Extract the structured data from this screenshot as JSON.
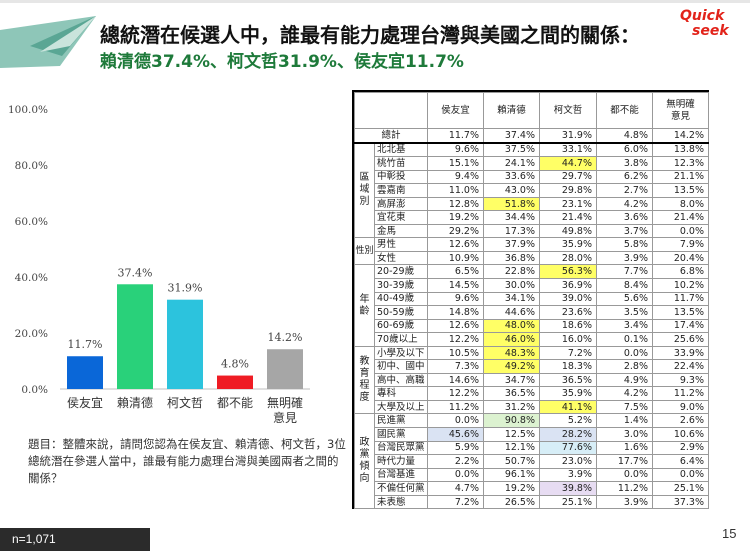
{
  "header": {
    "title": "總統潛在候選人中，誰最有能力處理台灣與美國之間的關係：",
    "subtitle": "賴清德37.4%、柯文哲31.9%、侯友宜11.7%",
    "logo_text_1": "Quick",
    "logo_text_2": "seek"
  },
  "chart_data": {
    "type": "bar",
    "categories": [
      "侯友宜",
      "賴清德",
      "柯文哲",
      "都不能",
      "無明確\n意見"
    ],
    "values": [
      11.7,
      37.4,
      31.9,
      4.8,
      14.2
    ],
    "value_labels": [
      "11.7%",
      "37.4%",
      "31.9%",
      "4.8%",
      "14.2%"
    ],
    "colors": [
      "#0a67d8",
      "#29d17a",
      "#2cc3dd",
      "#ef1c24",
      "#a6a6a6"
    ],
    "ylim": [
      0,
      100
    ],
    "yticks": [
      0,
      20,
      40,
      60,
      80,
      100
    ],
    "ytick_labels": [
      "0.0%",
      "20.0%",
      "40.0%",
      "60.0%",
      "80.0%",
      "100.0%"
    ],
    "grid": false
  },
  "note": "題目：整體來說，請問您認為在侯友宜、賴清德、柯文哲，3位總統潛在參選人當中，誰最有能力處理台灣與美國兩者之間的關係？",
  "sample": "n=1,071",
  "page_number": "15",
  "table": {
    "columns": [
      "侯友宜",
      "賴清德",
      "柯文哲",
      "都不能",
      "無明確\n意見"
    ],
    "total": {
      "label": "總計",
      "values": [
        "11.7%",
        "37.4%",
        "31.9%",
        "4.8%",
        "14.2%"
      ]
    },
    "groups": [
      {
        "label": "區域別",
        "rows": [
          {
            "label": "北北基",
            "values": [
              "9.6%",
              "37.5%",
              "33.1%",
              "6.0%",
              "13.8%"
            ]
          },
          {
            "label": "桃竹苗",
            "values": [
              "15.1%",
              "24.1%",
              "44.7%",
              "3.8%",
              "12.3%"
            ]
          },
          {
            "label": "中彰投",
            "values": [
              "9.4%",
              "33.6%",
              "29.7%",
              "6.2%",
              "21.1%"
            ]
          },
          {
            "label": "雲嘉南",
            "values": [
              "11.0%",
              "43.0%",
              "29.8%",
              "2.7%",
              "13.5%"
            ]
          },
          {
            "label": "高屏澎",
            "values": [
              "12.8%",
              "51.8%",
              "23.1%",
              "4.2%",
              "8.0%"
            ]
          },
          {
            "label": "宜花東",
            "values": [
              "19.2%",
              "34.4%",
              "21.4%",
              "3.6%",
              "21.4%"
            ]
          },
          {
            "label": "金馬",
            "values": [
              "29.2%",
              "17.3%",
              "49.8%",
              "3.7%",
              "0.0%"
            ]
          }
        ]
      },
      {
        "label": "性別",
        "rows": [
          {
            "label": "男性",
            "values": [
              "12.6%",
              "37.9%",
              "35.9%",
              "5.8%",
              "7.9%"
            ]
          },
          {
            "label": "女性",
            "values": [
              "10.9%",
              "36.8%",
              "28.0%",
              "3.9%",
              "20.4%"
            ]
          }
        ]
      },
      {
        "label": "年齡",
        "rows": [
          {
            "label": "20-29歲",
            "values": [
              "6.5%",
              "22.8%",
              "56.3%",
              "7.7%",
              "6.8%"
            ]
          },
          {
            "label": "30-39歲",
            "values": [
              "14.5%",
              "30.0%",
              "36.9%",
              "8.4%",
              "10.2%"
            ]
          },
          {
            "label": "40-49歲",
            "values": [
              "9.6%",
              "34.1%",
              "39.0%",
              "5.6%",
              "11.7%"
            ]
          },
          {
            "label": "50-59歲",
            "values": [
              "14.8%",
              "44.6%",
              "23.6%",
              "3.5%",
              "13.5%"
            ]
          },
          {
            "label": "60-69歲",
            "values": [
              "12.6%",
              "48.0%",
              "18.6%",
              "3.4%",
              "17.4%"
            ]
          },
          {
            "label": "70歲以上",
            "values": [
              "12.2%",
              "46.0%",
              "16.0%",
              "0.1%",
              "25.6%"
            ]
          }
        ]
      },
      {
        "label": "教育程度",
        "rows": [
          {
            "label": "小學及以下",
            "values": [
              "10.5%",
              "48.3%",
              "7.2%",
              "0.0%",
              "33.9%"
            ]
          },
          {
            "label": "初中、國中",
            "values": [
              "7.3%",
              "49.2%",
              "18.3%",
              "2.8%",
              "22.4%"
            ]
          },
          {
            "label": "高中、高職",
            "values": [
              "14.6%",
              "34.7%",
              "36.5%",
              "4.9%",
              "9.3%"
            ]
          },
          {
            "label": "專科",
            "values": [
              "12.2%",
              "36.5%",
              "35.9%",
              "4.2%",
              "11.2%"
            ]
          },
          {
            "label": "大學及以上",
            "values": [
              "11.2%",
              "31.2%",
              "41.1%",
              "7.5%",
              "9.0%"
            ]
          }
        ]
      },
      {
        "label": "政黨傾向",
        "rows": [
          {
            "label": "民進黨",
            "values": [
              "0.0%",
              "90.8%",
              "5.2%",
              "1.4%",
              "2.6%"
            ]
          },
          {
            "label": "國民黨",
            "values": [
              "45.6%",
              "12.5%",
              "28.2%",
              "3.0%",
              "10.6%"
            ]
          },
          {
            "label": "台灣民眾黨",
            "values": [
              "5.9%",
              "12.1%",
              "77.6%",
              "1.6%",
              "2.9%"
            ]
          },
          {
            "label": "時代力量",
            "values": [
              "2.2%",
              "50.7%",
              "23.0%",
              "17.7%",
              "6.4%"
            ]
          },
          {
            "label": "台灣基進",
            "values": [
              "0.0%",
              "96.1%",
              "3.9%",
              "0.0%",
              "0.0%"
            ]
          },
          {
            "label": "不偏任何黨",
            "values": [
              "4.7%",
              "19.2%",
              "39.8%",
              "11.2%",
              "25.1%"
            ]
          },
          {
            "label": "未表態",
            "values": [
              "7.2%",
              "26.5%",
              "25.1%",
              "3.9%",
              "37.3%"
            ]
          }
        ]
      }
    ],
    "highlights": [
      {
        "row": "桃竹苗",
        "col": 2,
        "color": "yellow"
      },
      {
        "row": "高屏澎",
        "col": 1,
        "color": "yellow"
      },
      {
        "row": "20-29歲",
        "col": 2,
        "color": "yellow"
      },
      {
        "row": "60-69歲",
        "col": 1,
        "color": "yellow"
      },
      {
        "row": "70歲以上",
        "col": 1,
        "color": "yellow"
      },
      {
        "row": "小學及以下",
        "col": 1,
        "color": "yellow"
      },
      {
        "row": "初中、國中",
        "col": 1,
        "color": "yellow"
      },
      {
        "row": "大學及以上",
        "col": 2,
        "color": "yellow"
      },
      {
        "row": "民進黨",
        "col": 1,
        "color": "green"
      },
      {
        "row": "國民黨",
        "col": 0,
        "color": "blue"
      },
      {
        "row": "國民黨",
        "col": 2,
        "color": "blue"
      },
      {
        "row": "台灣民眾黨",
        "col": 2,
        "color": "cyan"
      },
      {
        "row": "不偏任何黨",
        "col": 2,
        "color": "violet"
      }
    ]
  }
}
